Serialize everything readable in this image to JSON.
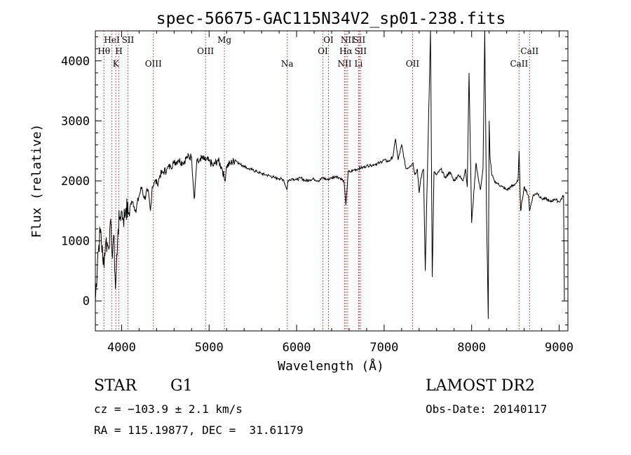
{
  "chart_data": {
    "type": "line",
    "title": "spec-56675-GAC115N34V2_sp01-238.fits",
    "xlabel": "Wavelength (Å)",
    "ylabel": "Flux (relative)",
    "xlim": [
      3700,
      9100
    ],
    "ylim": [
      -500,
      4500
    ],
    "xticks": [
      4000,
      5000,
      6000,
      7000,
      8000,
      9000
    ],
    "yticks": [
      0,
      1000,
      2000,
      3000,
      4000
    ],
    "grid": false,
    "legend": "none",
    "line_color": "#000000",
    "marker_color": "#b22222",
    "series": [
      {
        "x": [
          3700,
          3730,
          3760,
          3790,
          3820,
          3850,
          3870,
          3890,
          3910,
          3930,
          3960,
          3980,
          4000,
          4020,
          4050,
          4080,
          4100,
          4130,
          4160,
          4200,
          4230,
          4260,
          4300,
          4330,
          4350,
          4380,
          4410,
          4440,
          4480,
          4520,
          4560,
          4600,
          4650,
          4700,
          4750,
          4800,
          4830,
          4860,
          4880,
          4900,
          4950,
          5000,
          5050,
          5100,
          5150,
          5180,
          5200,
          5250,
          5300,
          5350,
          5400,
          5450,
          5500,
          5550,
          5600,
          5650,
          5700,
          5750,
          5800,
          5850,
          5890,
          5900,
          5950,
          6000,
          6050,
          6100,
          6150,
          6200,
          6250,
          6300,
          6350,
          6400,
          6450,
          6500,
          6540,
          6563,
          6590,
          6620,
          6650,
          6700,
          6750,
          6800,
          6850,
          6900,
          6950,
          7000,
          7050,
          7100,
          7130,
          7160,
          7200,
          7250,
          7300,
          7330,
          7350,
          7380,
          7400,
          7420,
          7450,
          7470,
          7500,
          7530,
          7550,
          7570,
          7600,
          7650,
          7700,
          7750,
          7800,
          7850,
          7900,
          7930,
          7950,
          7970,
          8000,
          8050,
          8080,
          8100,
          8130,
          8150,
          8170,
          8190,
          8200,
          8210,
          8230,
          8260,
          8300,
          8350,
          8400,
          8450,
          8500,
          8530,
          8542,
          8560,
          8600,
          8650,
          8662,
          8700,
          8750,
          8800,
          8850,
          8900,
          8950,
          9000,
          9050,
          9060
        ],
        "y": [
          0,
          800,
          1200,
          600,
          1000,
          900,
          1300,
          800,
          1100,
          200,
          1200,
          1400,
          1500,
          1350,
          1550,
          1450,
          1600,
          1650,
          1500,
          1750,
          1900,
          1700,
          1850,
          1500,
          1900,
          2000,
          1950,
          2100,
          2150,
          2200,
          2250,
          2300,
          2350,
          2300,
          2400,
          2400,
          1700,
          2350,
          2300,
          2380,
          2350,
          2330,
          2250,
          2350,
          2200,
          2000,
          2250,
          2300,
          2350,
          2280,
          2250,
          2200,
          2180,
          2150,
          2120,
          2100,
          2080,
          2050,
          2040,
          2020,
          1850,
          2000,
          2040,
          2020,
          2050,
          2000,
          2020,
          2030,
          2000,
          2050,
          2020,
          2050,
          2080,
          2040,
          2000,
          1600,
          2150,
          2150,
          2180,
          2200,
          2220,
          2250,
          2260,
          2280,
          2300,
          2350,
          2320,
          2400,
          2700,
          2350,
          2600,
          2200,
          2250,
          2300,
          2100,
          2200,
          1800,
          2050,
          2200,
          500,
          2500,
          4500,
          400,
          2150,
          2100,
          2200,
          2050,
          2150,
          2000,
          2100,
          2000,
          2200,
          1900,
          3800,
          1300,
          2300,
          2000,
          1850,
          2200,
          4500,
          1500,
          -300,
          3000,
          2400,
          2100,
          2000,
          1950,
          1900,
          1850,
          1900,
          1950,
          2000,
          2500,
          1500,
          1900,
          1750,
          1500,
          1750,
          1800,
          1700,
          1700,
          1650,
          1700,
          1650,
          1750,
          0
        ]
      }
    ],
    "line_markers": [
      {
        "wave": 3798,
        "label": "Hθ",
        "row": 2
      },
      {
        "wave": 3889,
        "label": "HeI",
        "row": 1
      },
      {
        "wave": 3934,
        "label": "K",
        "row": 3
      },
      {
        "wave": 3969,
        "label": "H",
        "row": 2
      },
      {
        "wave": 4072,
        "label": "SII",
        "row": 1
      },
      {
        "wave": 4363,
        "label": "OIII",
        "row": 3
      },
      {
        "wave": 4959,
        "label": "OIII",
        "row": 2
      },
      {
        "wave": 5175,
        "label": "Mg",
        "row": 1
      },
      {
        "wave": 5893,
        "label": "Na",
        "row": 3
      },
      {
        "wave": 6300,
        "label": "OI",
        "row": 2
      },
      {
        "wave": 6364,
        "label": "OI",
        "row": 1
      },
      {
        "wave": 6548,
        "label": "NII",
        "row": 3
      },
      {
        "wave": 6563,
        "label": "Hα",
        "row": 2
      },
      {
        "wave": 6583,
        "label": "NII",
        "row": 1
      },
      {
        "wave": 6708,
        "label": "Li",
        "row": 3
      },
      {
        "wave": 6716,
        "label": "SII",
        "row": 1
      },
      {
        "wave": 6731,
        "label": "SII",
        "row": 2
      },
      {
        "wave": 7325,
        "label": "OII",
        "row": 3
      },
      {
        "wave": 8542,
        "label": "CaII",
        "row": 3
      },
      {
        "wave": 8662,
        "label": "CaII",
        "row": 2
      }
    ]
  },
  "info": {
    "object_class": "STAR",
    "subclass": "G1",
    "redshift": "cz = −103.9 ± 2.1 km/s",
    "coords": "RA = 115.19877, DEC =  31.61179",
    "survey": "LAMOST DR2",
    "obs_date": "Obs-Date: 20140117"
  }
}
